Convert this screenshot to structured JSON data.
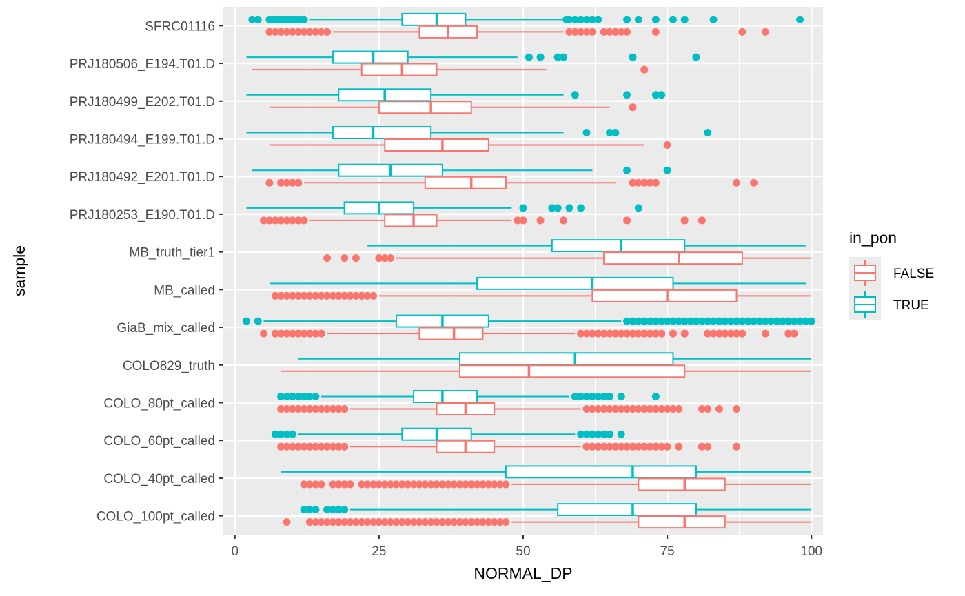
{
  "chart_data": {
    "type": "boxplot-horizontal",
    "xlabel": "NORMAL_DP",
    "ylabel": "sample",
    "xlim": [
      -2,
      102
    ],
    "x_ticks": [
      0,
      25,
      50,
      75,
      100
    ],
    "grid": true,
    "legend": {
      "title": "in_pon",
      "position": "right",
      "entries": [
        {
          "label": "FALSE",
          "color": "#F8766D"
        },
        {
          "label": "TRUE",
          "color": "#00BFC4"
        }
      ]
    },
    "categories": [
      "SFRC01116",
      "PRJ180506_E194.T01.D",
      "PRJ180499_E202.T01.D",
      "PRJ180494_E199.T01.D",
      "PRJ180492_E201.T01.D",
      "PRJ180253_E190.T01.D",
      "MB_truth_tier1",
      "MB_called",
      "GiaB_mix_called",
      "COLO829_truth",
      "COLO_80pt_called",
      "COLO_60pt_called",
      "COLO_40pt_called",
      "COLO_100pt_called"
    ],
    "series": [
      {
        "name": "TRUE",
        "color": "#00BFC4",
        "boxes": [
          {
            "min": 13,
            "q1": 29,
            "median": 35,
            "q3": 40,
            "max": 57,
            "outliers": [
              3,
              4,
              6,
              6.5,
              7,
              7.5,
              8,
              8.5,
              9,
              9.5,
              10,
              10.5,
              11,
              11.5,
              12,
              57.5,
              58,
              59,
              60,
              61,
              62,
              63,
              68,
              70,
              73,
              76,
              78,
              83,
              98
            ]
          },
          {
            "min": 2,
            "q1": 17,
            "median": 24,
            "q3": 30,
            "max": 49,
            "outliers": [
              51,
              53,
              56,
              57,
              69,
              80
            ]
          },
          {
            "min": 2,
            "q1": 18,
            "median": 26,
            "q3": 34,
            "max": 57,
            "outliers": [
              59,
              68,
              73,
              74
            ]
          },
          {
            "min": 2,
            "q1": 17,
            "median": 24,
            "q3": 34,
            "max": 57,
            "outliers": [
              61,
              65,
              66,
              82
            ]
          },
          {
            "min": 3,
            "q1": 18,
            "median": 27,
            "q3": 36,
            "max": 62,
            "outliers": [
              68,
              75
            ]
          },
          {
            "min": 2,
            "q1": 19,
            "median": 25,
            "q3": 31,
            "max": 48,
            "outliers": [
              50,
              55,
              56,
              58,
              60,
              70
            ]
          },
          {
            "min": 23,
            "q1": 55,
            "median": 67,
            "q3": 78,
            "max": 99,
            "outliers": []
          },
          {
            "min": 6,
            "q1": 42,
            "median": 62,
            "q3": 76,
            "max": 99,
            "outliers": []
          },
          {
            "min": 5,
            "q1": 28,
            "median": 36,
            "q3": 44,
            "max": 67,
            "outliers": [
              2,
              4,
              68,
              69,
              70,
              71,
              72,
              73,
              74,
              75,
              76,
              77,
              78,
              79,
              80,
              81,
              82,
              83,
              84,
              85,
              86,
              87,
              88,
              89,
              90,
              91,
              92,
              93,
              94,
              95,
              96,
              97,
              98,
              99,
              100
            ]
          },
          {
            "min": 11,
            "q1": 39,
            "median": 59,
            "q3": 76,
            "max": 100,
            "outliers": []
          },
          {
            "min": 15,
            "q1": 31,
            "median": 36,
            "q3": 42,
            "max": 58,
            "outliers": [
              8,
              9,
              10,
              11,
              12,
              13,
              14,
              59,
              60,
              61,
              62,
              63,
              64,
              65,
              67,
              73
            ]
          },
          {
            "min": 11,
            "q1": 29,
            "median": 35,
            "q3": 41,
            "max": 59,
            "outliers": [
              7,
              8,
              9,
              10,
              60,
              61,
              62,
              63,
              64,
              65,
              67
            ]
          },
          {
            "min": 8,
            "q1": 47,
            "median": 69,
            "q3": 80,
            "max": 100,
            "outliers": []
          },
          {
            "min": 20,
            "q1": 56,
            "median": 69,
            "q3": 80,
            "max": 100,
            "outliers": [
              12,
              13,
              14,
              16,
              17,
              18,
              19
            ]
          }
        ]
      },
      {
        "name": "FALSE",
        "color": "#F8766D",
        "boxes": [
          {
            "min": 17,
            "q1": 32,
            "median": 37,
            "q3": 42,
            "max": 57,
            "outliers": [
              6,
              7,
              8,
              9,
              10,
              11,
              12,
              13,
              14,
              15,
              16,
              58,
              59,
              60,
              61,
              62,
              64,
              65,
              66,
              67,
              68,
              73,
              88,
              92
            ]
          },
          {
            "min": 3,
            "q1": 22,
            "median": 29,
            "q3": 35,
            "max": 54,
            "outliers": [
              71
            ]
          },
          {
            "min": 6,
            "q1": 25,
            "median": 34,
            "q3": 41,
            "max": 65,
            "outliers": [
              69
            ]
          },
          {
            "min": 6,
            "q1": 26,
            "median": 36,
            "q3": 44,
            "max": 71,
            "outliers": [
              75
            ]
          },
          {
            "min": 12,
            "q1": 33,
            "median": 41,
            "q3": 47,
            "max": 66,
            "outliers": [
              6,
              8,
              9,
              10,
              11,
              69,
              70,
              71,
              72,
              73,
              87,
              90
            ]
          },
          {
            "min": 13,
            "q1": 26,
            "median": 31,
            "q3": 35,
            "max": 48,
            "outliers": [
              5,
              6,
              7,
              8,
              9,
              10,
              11,
              12,
              49,
              50,
              53,
              57,
              68,
              78,
              81
            ]
          },
          {
            "min": 28,
            "q1": 64,
            "median": 77,
            "q3": 88,
            "max": 100,
            "outliers": [
              16,
              19,
              21,
              25,
              26,
              27
            ]
          },
          {
            "min": 25,
            "q1": 62,
            "median": 75,
            "q3": 87,
            "max": 100,
            "outliers": [
              7,
              8,
              9,
              10,
              11,
              12,
              13,
              14,
              15,
              16,
              17,
              18,
              19,
              20,
              21,
              22,
              23,
              24
            ]
          },
          {
            "min": 16,
            "q1": 32,
            "median": 38,
            "q3": 43,
            "max": 59,
            "outliers": [
              5,
              7,
              8,
              9,
              10,
              11,
              12,
              13,
              14,
              15,
              60,
              61,
              62,
              63,
              64,
              65,
              66,
              67,
              68,
              69,
              70,
              71,
              72,
              73,
              74,
              76,
              78,
              82,
              83,
              84,
              85,
              86,
              87,
              88,
              92,
              96,
              97
            ]
          },
          {
            "min": 8,
            "q1": 39,
            "median": 51,
            "q3": 78,
            "max": 100,
            "outliers": []
          },
          {
            "min": 20,
            "q1": 35,
            "median": 40,
            "q3": 45,
            "max": 60,
            "outliers": [
              8,
              9,
              10,
              11,
              12,
              13,
              14,
              15,
              16,
              17,
              18,
              19,
              61,
              62,
              63,
              64,
              65,
              66,
              67,
              68,
              69,
              70,
              71,
              72,
              73,
              74,
              75,
              76,
              77,
              81,
              82,
              84,
              87
            ]
          },
          {
            "min": 20,
            "q1": 35,
            "median": 40,
            "q3": 45,
            "max": 60,
            "outliers": [
              8,
              9,
              10,
              11,
              12,
              13,
              14,
              15,
              16,
              17,
              18,
              19,
              61,
              62,
              63,
              64,
              65,
              66,
              67,
              68,
              69,
              70,
              71,
              72,
              73,
              74,
              75,
              77,
              81,
              82,
              87
            ]
          },
          {
            "min": 48,
            "q1": 70,
            "median": 78,
            "q3": 85,
            "max": 100,
            "outliers": [
              12,
              13,
              14,
              15,
              17,
              18,
              19,
              20,
              22,
              23,
              24,
              25,
              26,
              27,
              28,
              29,
              30,
              31,
              32,
              33,
              34,
              35,
              36,
              37,
              38,
              39,
              40,
              41,
              42,
              43,
              44,
              45,
              46,
              47
            ]
          },
          {
            "min": 48,
            "q1": 70,
            "median": 78,
            "q3": 85,
            "max": 100,
            "outliers": [
              9,
              13,
              14,
              15,
              16,
              17,
              18,
              19,
              20,
              21,
              22,
              23,
              24,
              25,
              26,
              27,
              28,
              29,
              30,
              31,
              32,
              33,
              34,
              35,
              36,
              37,
              38,
              39,
              40,
              41,
              42,
              43,
              44,
              45,
              46,
              47
            ]
          }
        ]
      }
    ]
  }
}
